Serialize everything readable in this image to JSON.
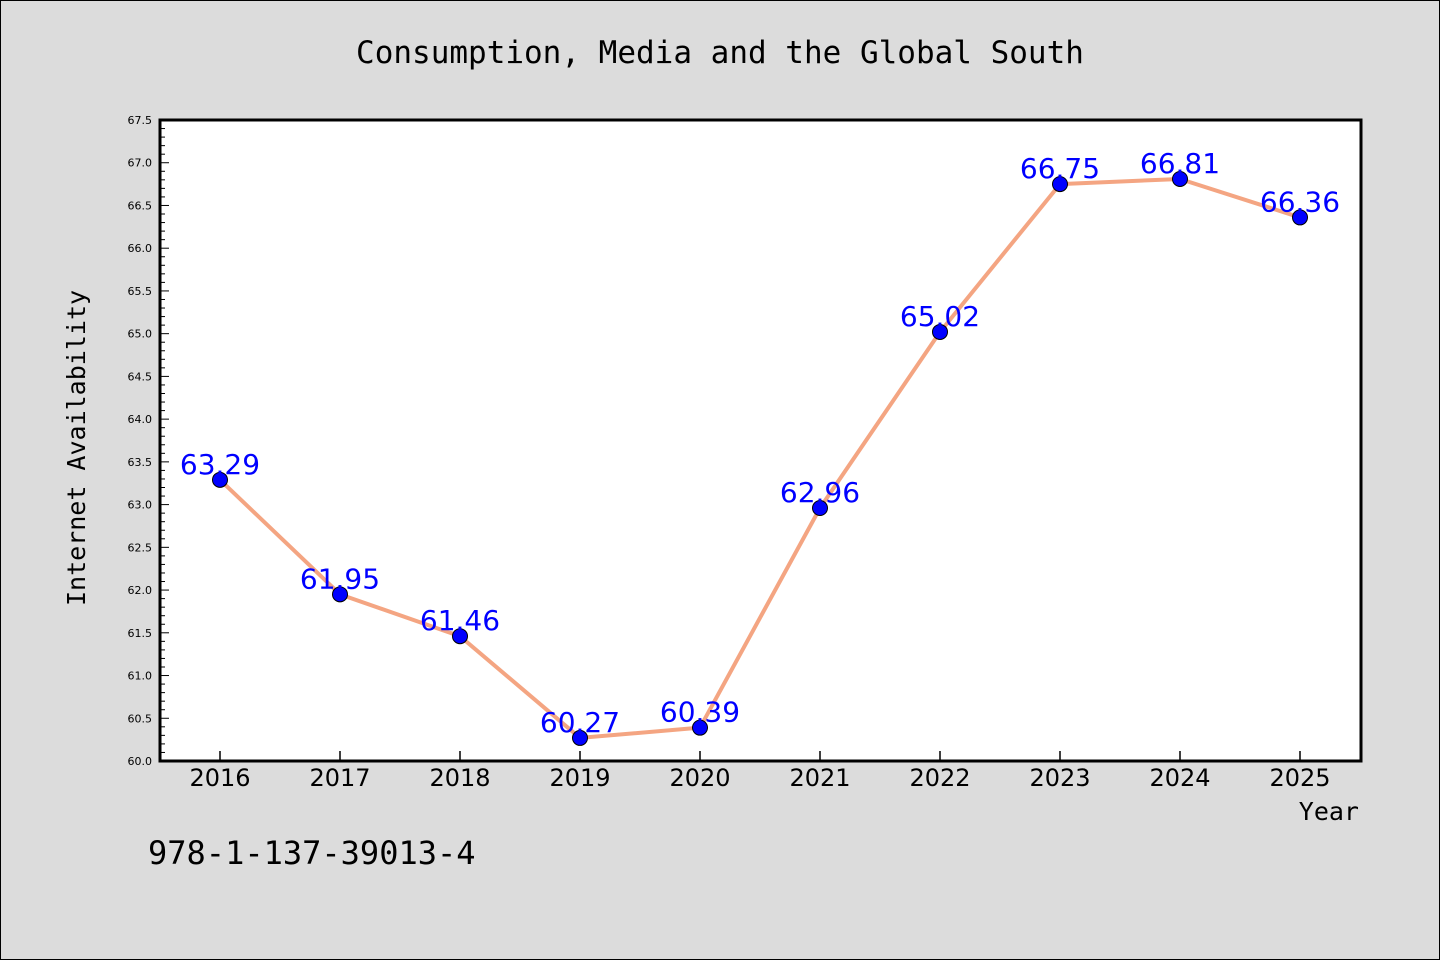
{
  "chart_data": {
    "type": "line",
    "title": "Consumption, Media and the Global South",
    "xlabel": "Year",
    "ylabel": "Internet Availability",
    "x": [
      "2016",
      "2017",
      "2018",
      "2019",
      "2020",
      "2021",
      "2022",
      "2023",
      "2024",
      "2025"
    ],
    "series": [
      {
        "values": [
          63.29,
          61.95,
          61.46,
          60.27,
          60.39,
          62.96,
          65.02,
          66.75,
          66.81,
          66.36
        ],
        "labels": [
          "63.29",
          "61.95",
          "61.46",
          "60.27",
          "60.39",
          "62.96",
          "65.02",
          "66.75",
          "66.81",
          "66.36"
        ],
        "line_color": "#f4a582",
        "marker_color": "#0000ff",
        "label_color": "#0000ff"
      }
    ],
    "ylim": [
      60.0,
      67.5
    ],
    "y_ticks": [
      "60.0",
      "60.5",
      "61.0",
      "61.5",
      "62.0",
      "62.5",
      "63.0",
      "63.5",
      "64.0",
      "64.5",
      "65.0",
      "65.5",
      "66.0",
      "66.5",
      "67.0",
      "67.5"
    ],
    "grid": false,
    "legend": "none"
  },
  "footer_text": "978-1-137-39013-4"
}
